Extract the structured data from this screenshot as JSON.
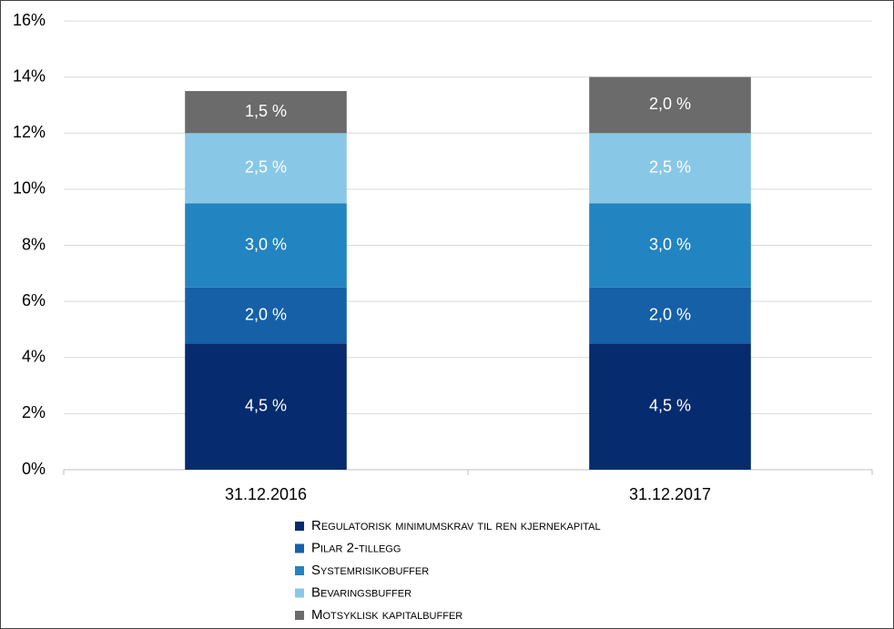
{
  "chart_data": {
    "type": "stacked_bar",
    "categories": [
      "31.12.2016",
      "31.12.2017"
    ],
    "series": [
      {
        "name": "Regulatorisk minimumskrav til ren kjernekapital",
        "color": "#062b6e",
        "values": [
          4.5,
          4.5
        ],
        "value_labels": [
          "4,5 %",
          "4,5 %"
        ]
      },
      {
        "name": "Pilar 2-tillegg",
        "color": "#1660a8",
        "values": [
          2.0,
          2.0
        ],
        "value_labels": [
          "2,0 %",
          "2,0 %"
        ]
      },
      {
        "name": "Systemrisikobuffer",
        "color": "#2284c0",
        "values": [
          3.0,
          3.0
        ],
        "value_labels": [
          "3,0 %",
          "3,0 %"
        ]
      },
      {
        "name": "Bevaringsbuffer",
        "color": "#88c8e6",
        "values": [
          2.5,
          2.5
        ],
        "value_labels": [
          "2,5 %",
          "2,5 %"
        ]
      },
      {
        "name": "Motsyklisk kapitalbuffer",
        "color": "#6b6b6b",
        "values": [
          1.5,
          2.0
        ],
        "value_labels": [
          "1,5 %",
          "2,0 %"
        ]
      }
    ],
    "ylim": [
      0,
      16
    ],
    "yticks": [
      {
        "value": 0,
        "label": "0%"
      },
      {
        "value": 2,
        "label": "2%"
      },
      {
        "value": 4,
        "label": "4%"
      },
      {
        "value": 6,
        "label": "6%"
      },
      {
        "value": 8,
        "label": "8%"
      },
      {
        "value": 10,
        "label": "10%"
      },
      {
        "value": 12,
        "label": "12%"
      },
      {
        "value": 14,
        "label": "14%"
      },
      {
        "value": 16,
        "label": "16%"
      }
    ],
    "grid": true
  }
}
